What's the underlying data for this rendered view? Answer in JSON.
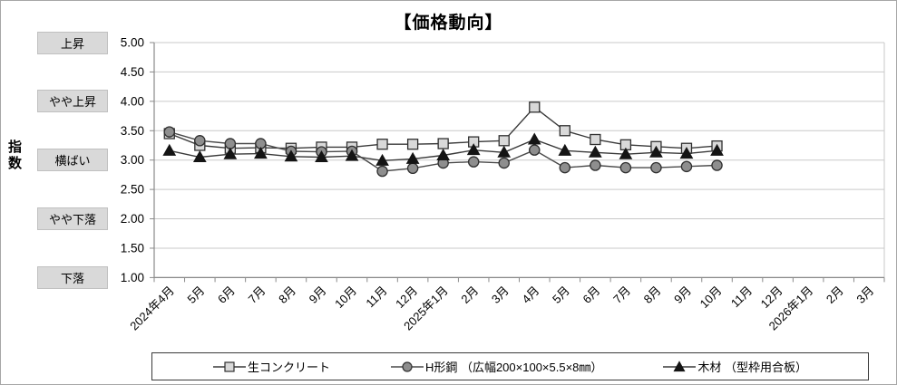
{
  "chart_data": {
    "type": "line",
    "title": "【価格動向】",
    "ylabel": "指数",
    "ylim": [
      1.0,
      5.0
    ],
    "ytick_labels": [
      "5.00",
      "4.50",
      "4.00",
      "3.50",
      "3.00",
      "2.50",
      "2.00",
      "1.50",
      "1.00"
    ],
    "grid": "horizontal",
    "legend_position": "bottom",
    "categories": [
      "2024年4月",
      "5月",
      "6月",
      "7月",
      "8月",
      "9月",
      "10月",
      "11月",
      "12月",
      "2025年1月",
      "2月",
      "3月",
      "4月",
      "5月",
      "6月",
      "7月",
      "8月",
      "9月",
      "10月",
      "11月",
      "12月",
      "2026年1月",
      "2月",
      "3月"
    ],
    "series": [
      {
        "id": "concrete",
        "name": "生コンクリート",
        "marker": "square",
        "marker_fill": "#d9d9d9",
        "marker_stroke": "#303030",
        "line_color": "#3a3a3a",
        "values": [
          3.45,
          3.25,
          3.2,
          3.21,
          3.2,
          3.22,
          3.22,
          3.27,
          3.27,
          3.28,
          3.31,
          3.33,
          3.9,
          3.5,
          3.35,
          3.26,
          3.23,
          3.2,
          3.24
        ]
      },
      {
        "id": "h-beam",
        "name": "H形鋼 （広幅200×100×5.5×8㎜）",
        "marker": "circle",
        "marker_fill": "#8e8e8e",
        "marker_stroke": "#303030",
        "line_color": "#4a4a4a",
        "values": [
          3.48,
          3.33,
          3.28,
          3.28,
          3.15,
          3.14,
          3.15,
          2.81,
          2.86,
          2.95,
          2.97,
          2.95,
          3.17,
          2.87,
          2.91,
          2.87,
          2.87,
          2.89,
          2.91
        ]
      },
      {
        "id": "lumber",
        "name": "木材 （型枠用合板）",
        "marker": "triangle",
        "marker_fill": "#141414",
        "marker_stroke": "#141414",
        "line_color": "#3a3a3a",
        "values": [
          3.16,
          3.05,
          3.1,
          3.11,
          3.06,
          3.05,
          3.07,
          2.99,
          3.02,
          3.08,
          3.17,
          3.13,
          3.35,
          3.16,
          3.13,
          3.1,
          3.13,
          3.11,
          3.16
        ]
      }
    ],
    "band_labels": [
      {
        "label": "上昇",
        "value": 5.0
      },
      {
        "label": "やや上昇",
        "value": 4.0
      },
      {
        "label": "横ばい",
        "value": 3.0
      },
      {
        "label": "やや下落",
        "value": 2.0
      },
      {
        "label": "下落",
        "value": 1.0
      }
    ]
  },
  "colors": {
    "grid": "#c9c9c9",
    "axis": "#8a8a8a",
    "band_bg": "#d9d9d9",
    "canvas_border": "#a6a6a6"
  }
}
